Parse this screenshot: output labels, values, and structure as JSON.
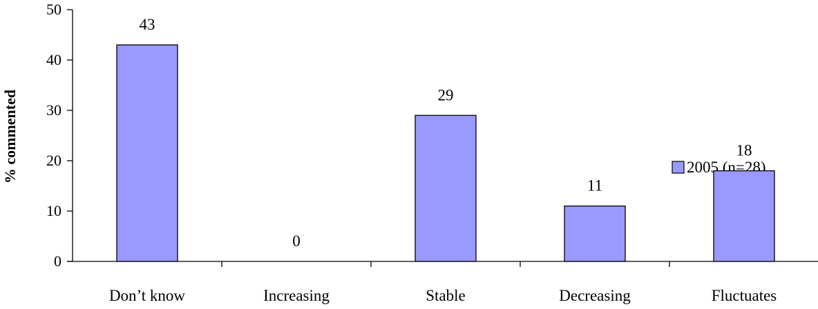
{
  "chart_data": {
    "type": "bar",
    "title": "",
    "xlabel": "",
    "ylabel": "% commented",
    "ylim": [
      0,
      50
    ],
    "yticks": [
      0,
      10,
      20,
      30,
      40,
      50
    ],
    "categories": [
      "Don’t know",
      "Increasing",
      "Stable",
      "Decreasing",
      "Fluctuates"
    ],
    "series": [
      {
        "name": "2005 (n=28)",
        "values": [
          43,
          0,
          29,
          11,
          18
        ],
        "color": "#9999ff"
      }
    ],
    "data_labels": [
      "43",
      "0",
      "29",
      "11",
      "18"
    ],
    "grid": false,
    "legend_position": "top-right"
  }
}
